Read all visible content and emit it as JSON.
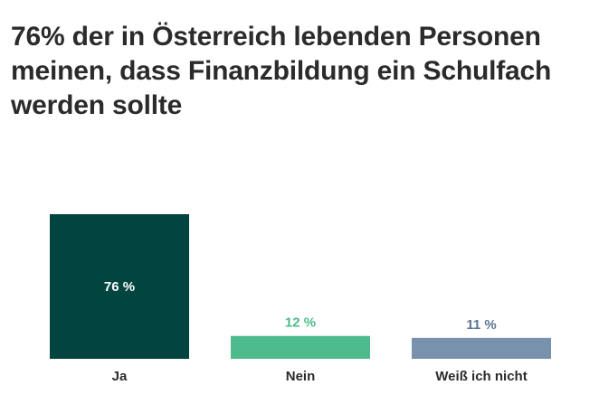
{
  "chart_data": {
    "type": "bar",
    "title": "76% der in Österreich lebenden Personen meinen, dass Finanzbildung ein Schulfach werden sollte",
    "categories": [
      "Ja",
      "Nein",
      "Weiß ich nicht"
    ],
    "values": [
      76,
      12,
      11
    ],
    "value_labels": [
      "76 %",
      "12 %",
      "11 %"
    ],
    "colors": [
      "#024440",
      "#4dbb8c",
      "#7892ad"
    ],
    "label_colors": [
      "#ffffff",
      "#4dbb8c",
      "#5b7595"
    ],
    "label_inside": [
      true,
      false,
      false
    ],
    "xlabel": "",
    "ylabel": "",
    "ylim": [
      0,
      76
    ],
    "grid": false
  }
}
